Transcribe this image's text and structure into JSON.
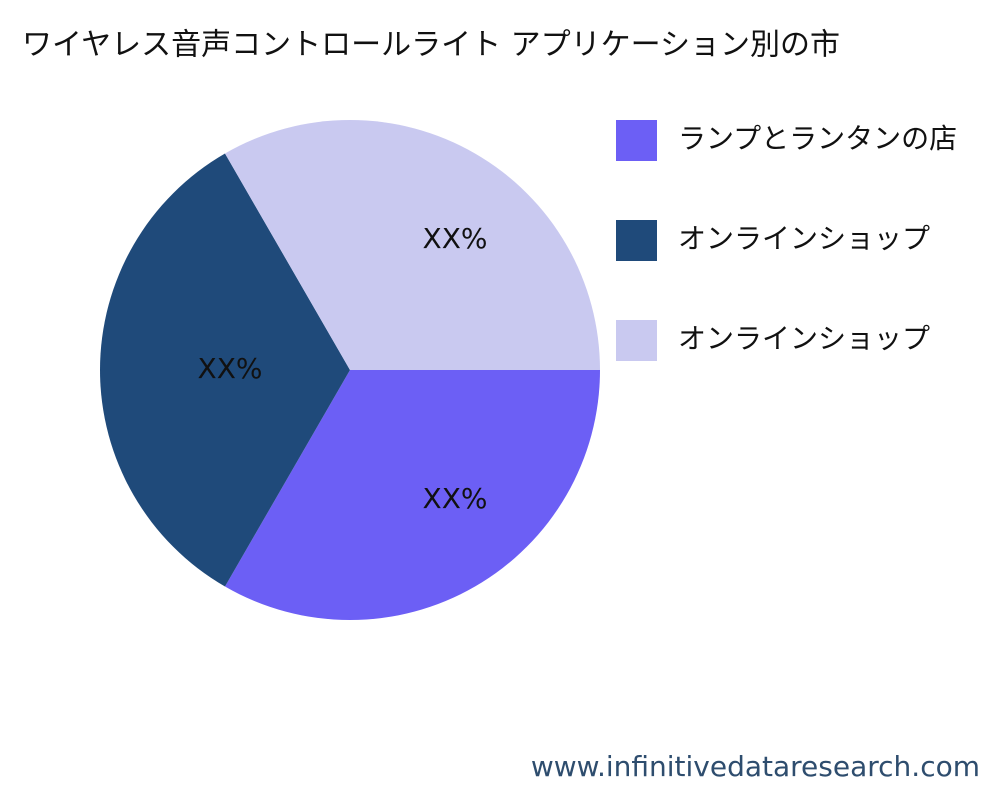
{
  "chart_data": {
    "type": "pie",
    "title": "ワイヤレス音声コントロールライト アプリケーション別の市",
    "categories": [
      "ランプとランタンの店",
      "オンラインショップ",
      "オンラインショップ"
    ],
    "values": [
      33.33,
      33.33,
      33.33
    ],
    "value_labels": [
      "XX%",
      "XX%",
      "XX%"
    ],
    "colors": [
      "#6c5ff5",
      "#1f4a7a",
      "#c9c9f0"
    ],
    "legend": "right"
  },
  "footer": "www.infinitivedataresearch.com"
}
